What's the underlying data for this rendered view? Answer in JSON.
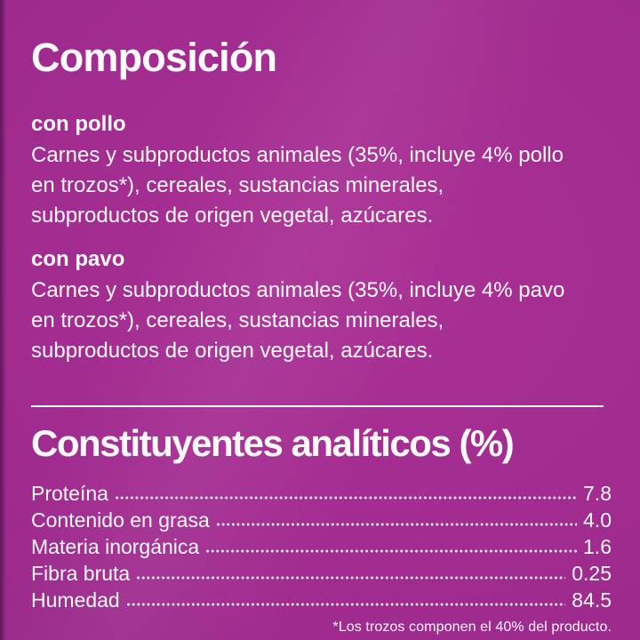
{
  "colors": {
    "background": "#9e2a8e",
    "background_highlight": "#aa3095",
    "background_edge": "#88217d",
    "text": "#fcf9fc"
  },
  "composition": {
    "title": "Composición",
    "sections": [
      {
        "heading": "con pollo",
        "body": "Carnes y subproductos animales (35%, incluye 4% pollo en trozos*), cereales, sustancias minerales, subproductos de origen vegetal, azúcares."
      },
      {
        "heading": "con pavo",
        "body": "Carnes y subproductos animales (35%, incluye 4% pavo en trozos*), cereales, sustancias minerales, subproductos de origen vegetal, azúcares."
      }
    ]
  },
  "analytical": {
    "title": "Constituyentes analíticos (%)",
    "rows": [
      {
        "label": "Proteína",
        "value": "7.8"
      },
      {
        "label": "Contenido en grasa",
        "value": "4.0"
      },
      {
        "label": "Materia inorgánica",
        "value": "1.6"
      },
      {
        "label": "Fibra bruta",
        "value": "0.25"
      },
      {
        "label": "Humedad",
        "value": "84.5"
      }
    ]
  },
  "footnote": "*Los trozos componen el 40% del producto."
}
